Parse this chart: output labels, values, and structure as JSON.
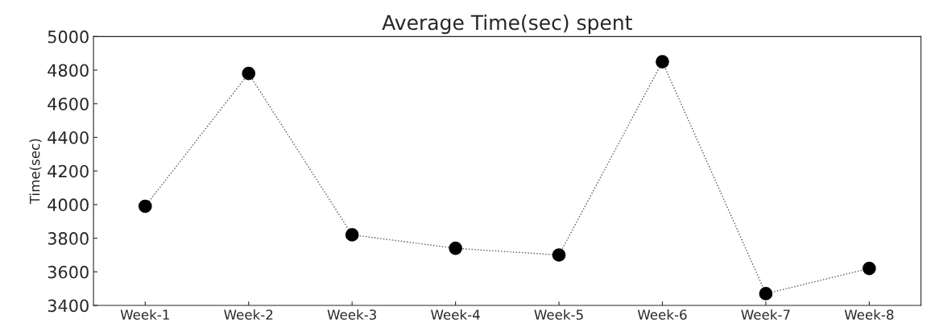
{
  "chart_data": {
    "type": "line",
    "title": "Average Time(sec) spent",
    "ylabel": "Time(sec)",
    "categories": [
      "Week-1",
      "Week-2",
      "Week-3",
      "Week-4",
      "Week-5",
      "Week-6",
      "Week-7",
      "Week-8"
    ],
    "series": [
      {
        "color": "#000000",
        "values": [
          3990,
          4780,
          3820,
          3740,
          3700,
          4850,
          3470,
          3620
        ]
      }
    ],
    "ylim": [
      3400,
      5000
    ],
    "yticks": [
      3400,
      3600,
      3800,
      4000,
      4200,
      4400,
      4600,
      4800,
      5000
    ],
    "marker": "circle",
    "line_style": "dotted",
    "grid": false,
    "legend": false
  }
}
